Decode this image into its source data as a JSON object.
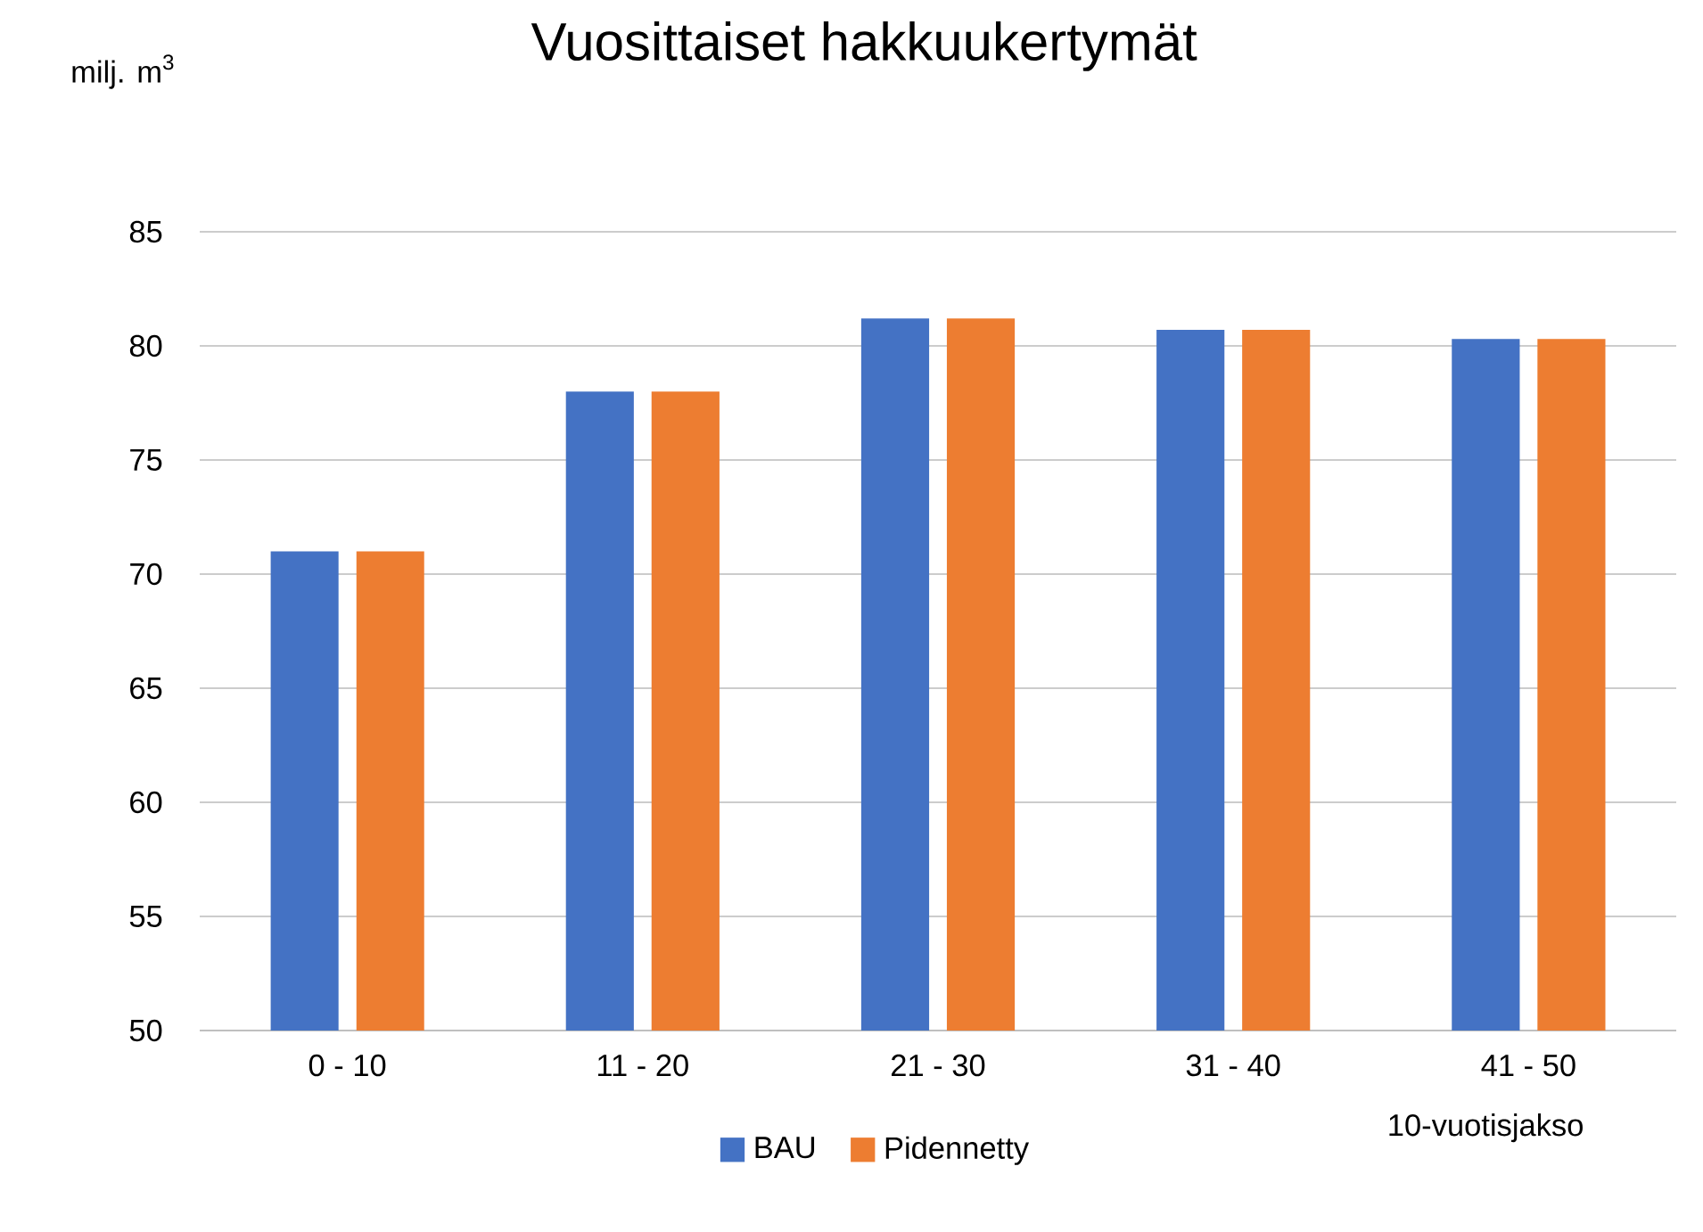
{
  "chart_data": {
    "type": "bar",
    "title": "Vuosittaiset hakkuukertymät",
    "ylabel": "milj. m$^{3}$",
    "xlabel": "10-vuotisjakso",
    "categories": [
      "0 - 10",
      "11 - 20",
      "21 - 30",
      "31 - 40",
      "41 - 50"
    ],
    "series": [
      {
        "name": "BAU",
        "color": "#4472c4",
        "values": [
          71,
          78,
          81.2,
          80.7,
          80.3
        ]
      },
      {
        "name": "Pidennetty",
        "color": "#ed7d31",
        "values": [
          71,
          78,
          81.2,
          80.7,
          80.3
        ]
      }
    ],
    "ylim": [
      50,
      85
    ],
    "yticks": [
      50,
      55,
      60,
      65,
      70,
      75,
      80,
      85
    ],
    "grid": "y",
    "legend": "bottom"
  }
}
